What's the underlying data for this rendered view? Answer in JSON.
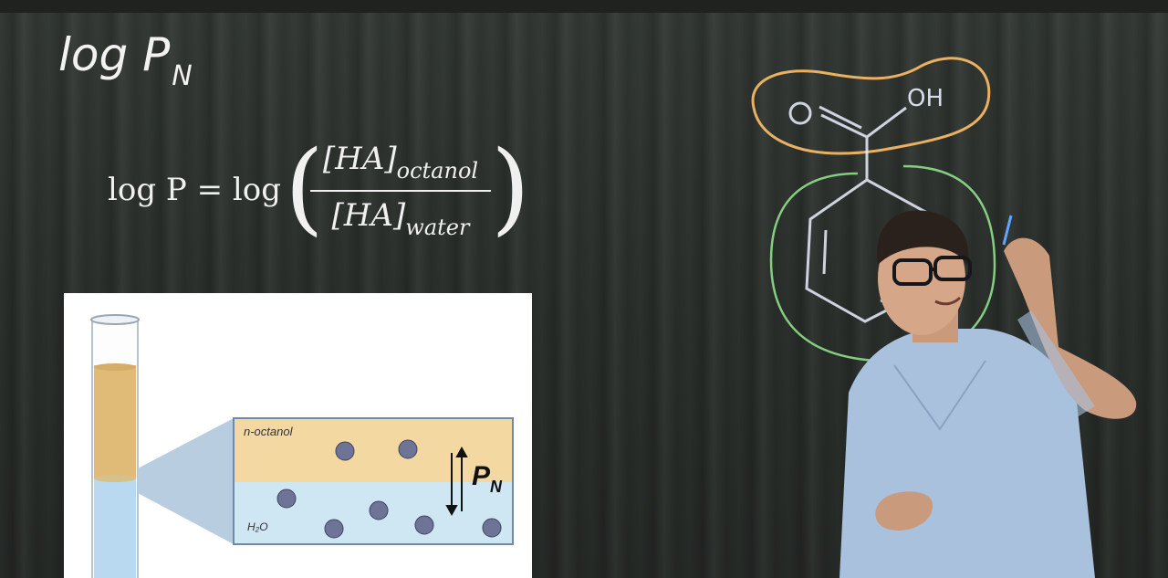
{
  "slide": {
    "title_main": "log P",
    "title_sub": "N",
    "formula": {
      "lhs": "log P = log",
      "numerator": "[HA]",
      "numerator_sub": "octanol",
      "denominator": "[HA]",
      "denominator_sub": "water"
    }
  },
  "figure": {
    "top_phase_label": "n-octanol",
    "bottom_phase_label": "H₂O",
    "coefficient_label": "P",
    "coefficient_sub": "N",
    "colors": {
      "octanol": "#f3d9a1",
      "water": "#cfe6f3",
      "tube_octanol": "#e0bb78",
      "tube_water": "#b9d9f0",
      "molecule": "#6e7496"
    }
  },
  "drawing": {
    "molecule_label": "OH",
    "oxygen_label": "O",
    "pen_colors": {
      "orange": "#f4b764",
      "green": "#8fdf8a",
      "white": "#e9f0ff"
    }
  },
  "person": {
    "shirt_color": "#a9c1dd"
  }
}
